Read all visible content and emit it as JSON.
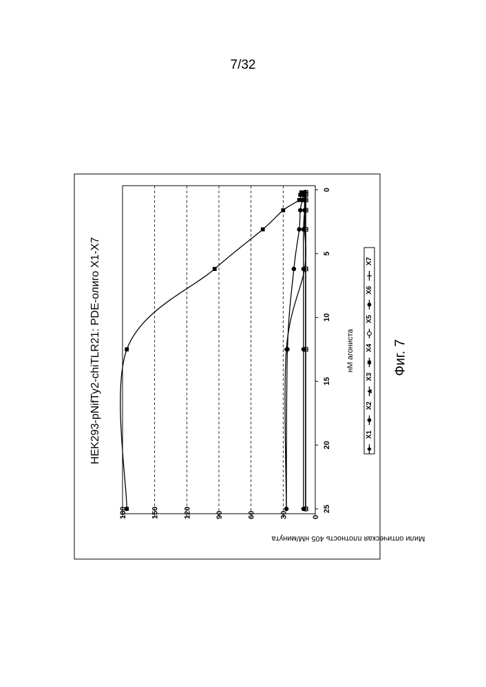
{
  "page": {
    "number": "7/32",
    "caption": "Фиг. 7"
  },
  "colors": {
    "line": "#000000",
    "grid": "#000000",
    "frame": "#000000",
    "background": "#ffffff"
  },
  "chart_data": {
    "type": "line",
    "orientation": "rotated-90-ccw",
    "title": "HEK293-pNifTy2-chiTLR21: PDE-олиго X1-X7",
    "xlabel": "нМ агониста",
    "ylabel": "Мили оптическая плотность 405 нМ/минута",
    "xlim": [
      0,
      25
    ],
    "ylim": [
      0,
      180
    ],
    "x_ticks": [
      "0",
      "5",
      "10",
      "15",
      "20",
      "25"
    ],
    "y_ticks": [
      "0",
      "30",
      "60",
      "90",
      "120",
      "150",
      "180"
    ],
    "grid": "horizontal-dashed",
    "legend_position": "bottom",
    "series": [
      {
        "name": "X1",
        "marker": "diamond",
        "points": [
          [
            0.2,
            10
          ],
          [
            0.4,
            10
          ],
          [
            0.8,
            10
          ],
          [
            1.6,
            10
          ],
          [
            3.1,
            10
          ],
          [
            6.2,
            10
          ],
          [
            12.5,
            27
          ],
          [
            25,
            27
          ]
        ]
      },
      {
        "name": "X2",
        "marker": "circle-filled",
        "points": [
          [
            0.2,
            10
          ],
          [
            0.4,
            11
          ],
          [
            0.8,
            12
          ],
          [
            1.6,
            14
          ],
          [
            3.1,
            15
          ],
          [
            6.2,
            20
          ],
          [
            12.5,
            26
          ],
          [
            25,
            27
          ]
        ]
      },
      {
        "name": "X3",
        "marker": "triangle",
        "points": [
          [
            0.2,
            9
          ],
          [
            0.4,
            9
          ],
          [
            0.8,
            9
          ],
          [
            1.6,
            9
          ],
          [
            3.1,
            9
          ],
          [
            6.2,
            9
          ],
          [
            12.5,
            9
          ],
          [
            25,
            9
          ]
        ]
      },
      {
        "name": "X4",
        "marker": "square",
        "points": [
          [
            0.2,
            13
          ],
          [
            0.4,
            14
          ],
          [
            0.8,
            15
          ],
          [
            1.6,
            30
          ],
          [
            3.1,
            49
          ],
          [
            6.2,
            94
          ],
          [
            12.5,
            176
          ],
          [
            25,
            176
          ]
        ]
      },
      {
        "name": "X5",
        "marker": "circle-open",
        "points": [
          [
            0.2,
            9
          ],
          [
            0.4,
            9
          ],
          [
            0.8,
            9
          ],
          [
            1.6,
            9
          ],
          [
            3.1,
            9
          ],
          [
            6.2,
            9
          ],
          [
            12.5,
            9
          ],
          [
            25,
            9
          ]
        ]
      },
      {
        "name": "X6",
        "marker": "circle-filled",
        "points": [
          [
            0.2,
            10
          ],
          [
            0.4,
            10
          ],
          [
            0.8,
            10
          ],
          [
            1.6,
            10
          ],
          [
            3.1,
            11
          ],
          [
            6.2,
            11
          ],
          [
            12.5,
            11
          ],
          [
            25,
            11
          ]
        ]
      },
      {
        "name": "X7",
        "marker": "plus",
        "points": [
          [
            0.2,
            9
          ],
          [
            0.4,
            9
          ],
          [
            0.8,
            9
          ],
          [
            1.6,
            9
          ],
          [
            3.1,
            9
          ],
          [
            6.2,
            9
          ],
          [
            12.5,
            9
          ],
          [
            25,
            9
          ]
        ]
      }
    ]
  }
}
